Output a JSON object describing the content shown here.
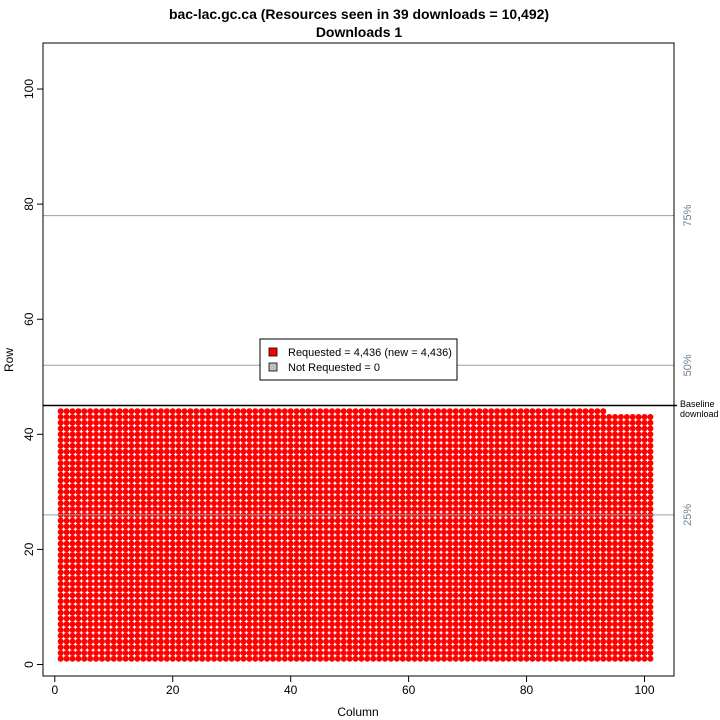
{
  "chart_data": {
    "type": "scatter",
    "title": "bac-lac.gc.ca (Resources seen in 39 downloads = 10,492)",
    "subtitle": "Downloads 1",
    "xlabel": "Column",
    "ylabel": "Row",
    "xlim": [
      -2,
      105
    ],
    "ylim": [
      -2,
      108
    ],
    "xticks": [
      0,
      20,
      40,
      60,
      80,
      100
    ],
    "yticks": [
      0,
      20,
      40,
      60,
      80,
      100
    ],
    "grid": {
      "columns": 101,
      "full_rows": 43,
      "partial_row_y": 44,
      "partial_row_columns": 93
    },
    "series": [
      {
        "name": "Requested = 4,436 (new = 4,436)",
        "color": "#ff0000",
        "count": 4436,
        "new": 4436
      },
      {
        "name": "Not Requested = 0",
        "color": "#bebebe",
        "count": 0
      }
    ],
    "reference_lines": [
      {
        "label": "25%",
        "y": 26,
        "color": "#8fa3b1"
      },
      {
        "label": "50%",
        "y": 52,
        "color": "#8fa3b1"
      },
      {
        "label": "75%",
        "y": 78,
        "color": "#8fa3b1"
      }
    ],
    "baseline": {
      "label_line1": "Baseline",
      "label_line2": "download",
      "y": 45,
      "color": "#000000"
    },
    "legend_position": "center"
  }
}
